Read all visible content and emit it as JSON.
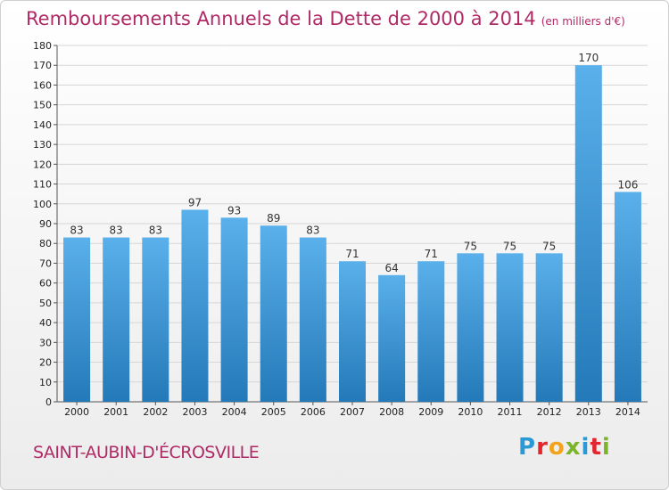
{
  "header": {
    "title": "Remboursements Annuels de la Dette de 2000 à 2014",
    "subtitle": "(en milliers d'€)"
  },
  "footer": {
    "commune": "SAINT-AUBIN-D'ÉCROSVILLE",
    "logo_text": "Proxiti",
    "logo_letters": [
      "P",
      "r",
      "o",
      "x",
      "i",
      "t",
      "i"
    ],
    "logo_colors": [
      "#2a9ad6",
      "#e3252d",
      "#f3a21b",
      "#7cb52a",
      "#2a9ad6",
      "#e3252d",
      "#7cb52a"
    ]
  },
  "colors": {
    "title": "#b02a66",
    "bar_top": "#5ab0ea",
    "bar_bottom": "#2479b8"
  },
  "chart_data": {
    "type": "bar",
    "title": "Remboursements Annuels de la Dette de 2000 à 2014",
    "categories": [
      "2000",
      "2001",
      "2002",
      "2003",
      "2004",
      "2005",
      "2006",
      "2007",
      "2008",
      "2009",
      "2010",
      "2011",
      "2012",
      "2013",
      "2014"
    ],
    "values": [
      83,
      83,
      83,
      97,
      93,
      89,
      83,
      71,
      64,
      71,
      75,
      75,
      75,
      170,
      106
    ],
    "data_labels": [
      "83",
      "83",
      "83",
      "97",
      "93",
      "89",
      "83",
      "71",
      "64",
      "71",
      "75",
      "75",
      "75",
      "170",
      "106"
    ],
    "ylim": [
      0,
      180
    ],
    "y_ticks": [
      0,
      10,
      20,
      30,
      40,
      50,
      60,
      70,
      80,
      90,
      100,
      110,
      120,
      130,
      140,
      150,
      160,
      170,
      180
    ],
    "grid": true,
    "legend": "none"
  }
}
